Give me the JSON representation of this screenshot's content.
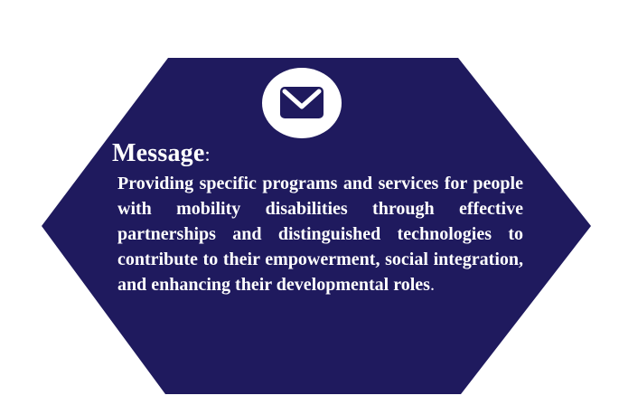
{
  "colors": {
    "background": "#ffffff",
    "hexagon_fill": "#1f1a5e",
    "icon_circle": "#ffffff",
    "icon_envelope": "#1f1a5e",
    "text": "#ffffff"
  },
  "badge": {
    "icon": "envelope-icon"
  },
  "message": {
    "title": "Message",
    "title_suffix": ":",
    "body": "Providing specific programs and services for people with mobility disabilities through effective partnerships and distinguished technologies to contribute to their empowerment, social integration, and enhancing their developmental roles",
    "body_suffix": "."
  }
}
